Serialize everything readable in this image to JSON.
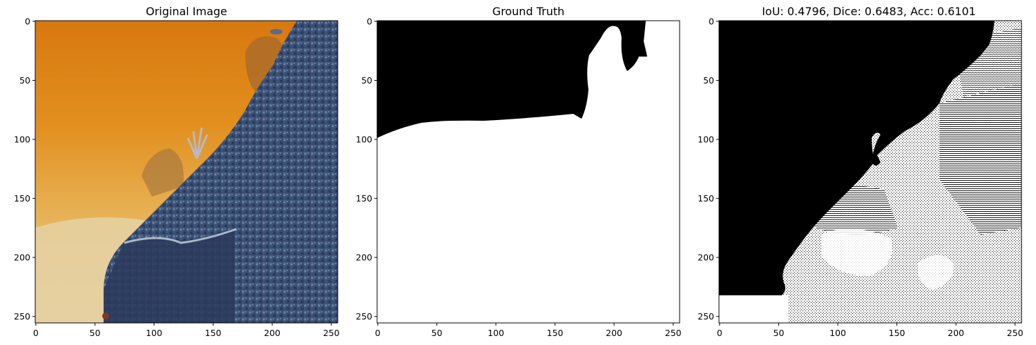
{
  "chart_data": [
    {
      "type": "image",
      "title": "Original Image",
      "xlim": [
        0,
        256
      ],
      "ylim": [
        256,
        0
      ],
      "xticks": [
        0,
        50,
        100,
        150,
        200,
        250
      ],
      "yticks": [
        0,
        50,
        100,
        150,
        200,
        250
      ],
      "content": "underwater photo: orange water on left, blue coral reef diagonally on right, sandy seabed bottom-left",
      "colors": {
        "water": "#e08a1c",
        "sand": "#e8d2a6",
        "reef": "#3f5278"
      }
    },
    {
      "type": "image",
      "title": "Ground Truth",
      "xlim": [
        0,
        256
      ],
      "ylim": [
        256,
        0
      ],
      "xticks": [
        0,
        50,
        100,
        150,
        200,
        250
      ],
      "yticks": [
        0,
        50,
        100,
        150,
        200,
        250
      ],
      "content": "binary mask: black region at top, white below"
    },
    {
      "type": "image",
      "title": "IoU: 0.4796, Dice: 0.6483, Acc: 0.6101",
      "xlim": [
        0,
        256
      ],
      "ylim": [
        256,
        0
      ],
      "xticks": [
        0,
        50,
        100,
        150,
        200,
        250
      ],
      "yticks": [
        0,
        50,
        100,
        150,
        200,
        250
      ],
      "content": "predicted binary mask: black upper-left triangle, noisy white/black dithered region lower-right",
      "metrics": {
        "iou": 0.4796,
        "dice": 0.6483,
        "acc": 0.6101
      }
    }
  ]
}
